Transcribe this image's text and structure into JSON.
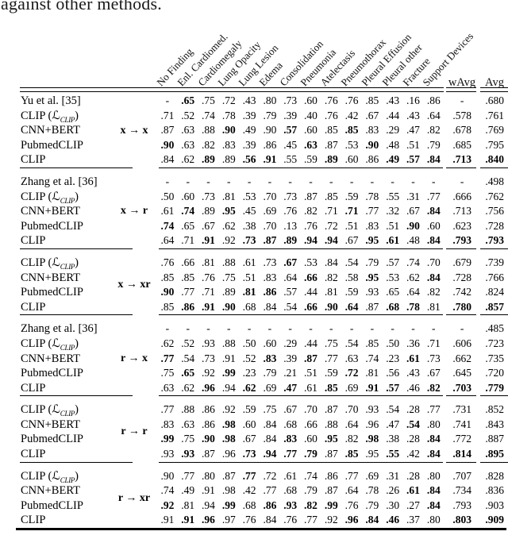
{
  "caption_fragment": "against other methods.",
  "table": {
    "bold_marker": "*",
    "column_headers": [
      "No Finding",
      "Enl. Cardiomed.",
      "Cardiomegaly",
      "Lung Opacity",
      "Lung Lesion",
      "Edema",
      "Consolidation",
      "Pneumonia",
      "Atelectasis",
      "Pneumothorax",
      "Pleural Effusion",
      "Pleural other",
      "Fracture",
      "Support Devices"
    ],
    "summary_headers": [
      "wAvg",
      "Avg"
    ],
    "groups": [
      {
        "setting": "x → x",
        "setting_row": 2,
        "rows": [
          {
            "method": "Yu et al. [35]",
            "values": [
              "-",
              "*.65",
              ".75",
              ".72",
              ".43",
              ".80",
              ".73",
              ".60",
              ".76",
              ".76",
              ".85",
              ".43",
              ".16",
              ".86"
            ],
            "wavg": "-",
            "avg": ".680"
          },
          {
            "method": "CLIP (ℒ{CLIP})",
            "values": [
              ".71",
              ".52",
              ".74",
              ".78",
              ".39",
              ".79",
              ".39",
              ".40",
              ".76",
              ".42",
              ".67",
              ".44",
              ".43",
              ".64"
            ],
            "wavg": ".578",
            "avg": ".761"
          },
          {
            "method": "CNN+BERT",
            "values": [
              ".87",
              ".63",
              ".88",
              "*.90",
              ".49",
              ".90",
              "*.57",
              ".60",
              ".85",
              "*.85",
              ".83",
              ".29",
              ".47",
              ".82"
            ],
            "wavg": ".678",
            "avg": ".769"
          },
          {
            "method": "PubmedCLIP",
            "values": [
              "*.90",
              ".63",
              ".82",
              ".83",
              ".39",
              ".86",
              ".45",
              "*.63",
              ".87",
              ".53",
              "*.90",
              ".48",
              ".51",
              ".79"
            ],
            "wavg": ".685",
            "avg": ".795"
          },
          {
            "method": "CLIP",
            "values": [
              ".84",
              ".62",
              "*.89",
              ".89",
              "*.56",
              "*.91",
              ".55",
              ".59",
              "*.89",
              ".60",
              ".86",
              "*.49",
              "*.57",
              "*.84"
            ],
            "wavg": "*.713",
            "avg": "*.840"
          }
        ]
      },
      {
        "setting": "x → r",
        "setting_row": 2,
        "rows": [
          {
            "method": "Zhang et al. [36]",
            "values": [
              "-",
              "-",
              "-",
              "-",
              "-",
              "-",
              "-",
              "-",
              "-",
              "-",
              "-",
              "-",
              "-",
              "-"
            ],
            "wavg": "-",
            "avg": ".498"
          },
          {
            "method": "CLIP (ℒ{CLIP})",
            "values": [
              ".50",
              ".60",
              ".73",
              ".81",
              ".53",
              ".70",
              ".73",
              ".87",
              ".85",
              ".59",
              ".78",
              ".55",
              ".31",
              ".77"
            ],
            "wavg": ".666",
            "avg": ".762"
          },
          {
            "method": "CNN+BERT",
            "values": [
              ".61",
              "*.74",
              ".89",
              "*.95",
              ".45",
              ".69",
              ".76",
              ".82",
              ".71",
              "*.71",
              ".77",
              ".32",
              ".67",
              "*.84"
            ],
            "wavg": ".713",
            "avg": ".756"
          },
          {
            "method": "PubmedCLIP",
            "values": [
              "*.74",
              ".65",
              ".67",
              ".62",
              ".38",
              ".70",
              ".13",
              ".76",
              ".72",
              ".51",
              ".83",
              ".51",
              "*.90",
              ".60"
            ],
            "wavg": ".623",
            "avg": ".728"
          },
          {
            "method": "CLIP",
            "values": [
              ".64",
              ".71",
              "*.91",
              ".92",
              "*.73",
              "*.87",
              "*.89",
              "*.94",
              "*.94",
              ".67",
              "*.95",
              "*.61",
              ".48",
              "*.84"
            ],
            "wavg": "*.793",
            "avg": "*.793"
          }
        ]
      },
      {
        "setting": "x → xr",
        "setting_row": 1.5,
        "rows": [
          {
            "method": "CLIP (ℒ{CLIP})",
            "values": [
              ".76",
              ".66",
              ".81",
              ".88",
              ".61",
              ".73",
              "*.67",
              ".53",
              ".84",
              ".54",
              ".79",
              ".57",
              ".74",
              ".70"
            ],
            "wavg": ".679",
            "avg": ".739"
          },
          {
            "method": "CNN+BERT",
            "values": [
              ".85",
              ".85",
              ".76",
              ".75",
              ".51",
              ".83",
              ".64",
              "*.66",
              ".82",
              ".58",
              "*.95",
              ".53",
              ".62",
              "*.84"
            ],
            "wavg": ".728",
            "avg": ".766"
          },
          {
            "method": "PubmedCLIP",
            "values": [
              "*.90",
              ".77",
              ".71",
              ".89",
              "*.81",
              "*.86",
              ".57",
              ".44",
              ".81",
              ".59",
              ".93",
              ".65",
              ".64",
              ".82"
            ],
            "wavg": ".742",
            "avg": ".824"
          },
          {
            "method": "CLIP",
            "values": [
              ".85",
              "*.86",
              "*.91",
              "*.90",
              ".68",
              ".84",
              ".54",
              "*.66",
              "*.90",
              "*.64",
              ".87",
              "*.68",
              "*.78",
              ".81"
            ],
            "wavg": "*.780",
            "avg": "*.857"
          }
        ]
      },
      {
        "setting": "r → x",
        "setting_row": 2,
        "rows": [
          {
            "method": "Zhang et al. [36]",
            "values": [
              "-",
              "-",
              "-",
              "-",
              "-",
              "-",
              "-",
              "-",
              "-",
              "-",
              "-",
              "-",
              "-",
              "-"
            ],
            "wavg": "-",
            "avg": ".485"
          },
          {
            "method": "CLIP (ℒ{CLIP})",
            "values": [
              ".62",
              ".52",
              ".93",
              ".88",
              ".50",
              ".60",
              ".29",
              ".44",
              ".75",
              ".54",
              ".85",
              ".50",
              ".36",
              ".71"
            ],
            "wavg": ".606",
            "avg": ".723"
          },
          {
            "method": "CNN+BERT",
            "values": [
              "*.77",
              ".54",
              ".73",
              ".91",
              ".52",
              "*.83",
              ".39",
              "*.87",
              ".77",
              ".63",
              ".74",
              ".23",
              "*.61",
              ".73"
            ],
            "wavg": ".662",
            "avg": ".735"
          },
          {
            "method": "PubmedCLIP",
            "values": [
              ".75",
              "*.65",
              ".92",
              "*.99",
              ".23",
              ".79",
              ".21",
              ".51",
              ".59",
              "*.72",
              ".81",
              ".56",
              ".43",
              ".67"
            ],
            "wavg": ".645",
            "avg": ".720"
          },
          {
            "method": "CLIP",
            "values": [
              ".63",
              ".62",
              "*.96",
              ".94",
              "*.62",
              ".69",
              "*.47",
              ".61",
              "*.85",
              ".69",
              "*.91",
              "*.57",
              ".46",
              "*.82"
            ],
            "wavg": "*.703",
            "avg": "*.779"
          }
        ]
      },
      {
        "setting": "r → r",
        "setting_row": 1.5,
        "rows": [
          {
            "method": "CLIP (ℒ{CLIP})",
            "values": [
              ".77",
              ".88",
              ".86",
              ".92",
              ".59",
              ".75",
              ".67",
              ".70",
              ".87",
              ".70",
              ".93",
              ".54",
              ".28",
              ".77"
            ],
            "wavg": ".731",
            "avg": ".852"
          },
          {
            "method": "CNN+BERT",
            "values": [
              ".83",
              ".63",
              ".86",
              "*.98",
              ".60",
              ".84",
              ".68",
              ".66",
              ".88",
              ".64",
              ".96",
              ".47",
              "*.54",
              ".80"
            ],
            "wavg": ".741",
            "avg": ".843"
          },
          {
            "method": "PubmedCLIP",
            "values": [
              "*.99",
              ".75",
              "*.90",
              "*.98",
              ".67",
              ".84",
              "*.83",
              ".60",
              "*.95",
              ".82",
              "*.98",
              ".38",
              ".28",
              "*.84"
            ],
            "wavg": ".772",
            "avg": ".887"
          },
          {
            "method": "CLIP",
            "values": [
              ".93",
              "*.93",
              ".87",
              ".96",
              "*.73",
              "*.94",
              "*.77",
              "*.79",
              ".87",
              "*.85",
              ".95",
              "*.55",
              ".42",
              "*.84"
            ],
            "wavg": "*.814",
            "avg": "*.895"
          }
        ]
      },
      {
        "setting": "r → xr",
        "setting_row": 1.5,
        "rows": [
          {
            "method": "CLIP (ℒ{CLIP})",
            "values": [
              ".90",
              ".77",
              ".80",
              ".87",
              "*.77",
              ".72",
              ".61",
              ".74",
              ".86",
              ".77",
              ".69",
              ".31",
              ".28",
              ".80"
            ],
            "wavg": ".707",
            "avg": ".828"
          },
          {
            "method": "CNN+BERT",
            "values": [
              ".74",
              ".49",
              ".91",
              ".98",
              ".42",
              ".77",
              ".68",
              ".79",
              ".87",
              ".64",
              ".78",
              ".26",
              "*.61",
              "*.84"
            ],
            "wavg": ".734",
            "avg": ".836"
          },
          {
            "method": "PubmedCLIP",
            "values": [
              "*.92",
              ".81",
              ".94",
              "*.99",
              ".68",
              "*.86",
              "*.93",
              "*.82",
              "*.99",
              ".76",
              ".79",
              ".30",
              ".27",
              "*.84"
            ],
            "wavg": ".793",
            "avg": ".903"
          },
          {
            "method": "CLIP",
            "values": [
              ".91",
              "*.91",
              "*.96",
              ".97",
              ".76",
              ".84",
              ".76",
              ".77",
              ".92",
              "*.96",
              "*.84",
              "*.46",
              ".37",
              ".80"
            ],
            "wavg": "*.803",
            "avg": "*.909"
          }
        ]
      }
    ]
  }
}
